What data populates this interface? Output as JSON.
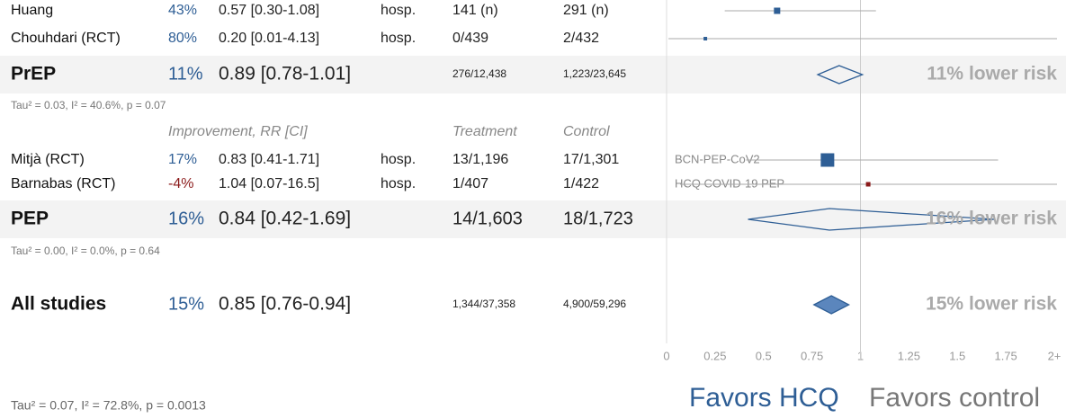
{
  "rows": [
    {
      "name": "Huang",
      "improvement": "43%",
      "rr_ci": "0.57 [0.30-1.08]",
      "outcome": "hosp.",
      "treatment": "141 (n)",
      "control": "291 (n)"
    },
    {
      "name": "Chouhdari (RCT)",
      "improvement": "80%",
      "rr_ci": "0.20 [0.01-4.13]",
      "outcome": "hosp.",
      "treatment": "0/439",
      "control": "2/432"
    },
    {
      "name": "PrEP",
      "improvement": "11%",
      "rr_ci": "0.89 [0.78-1.01]",
      "treatment": "276/12,438",
      "control": "1,223/23,645",
      "result": "11% lower risk"
    },
    {
      "name": "Tau² = 0.03, I² = 40.6%, p = 0.07"
    },
    {
      "improvement": "Improvement, RR [CI]",
      "treatment": "Treatment",
      "control": "Control"
    },
    {
      "name": "Mitjà (RCT)",
      "improvement": "17%",
      "rr_ci": "0.83 [0.41-1.71]",
      "outcome": "hosp.",
      "treatment": "13/1,196",
      "control": "17/1,301",
      "label": "BCN-PEP-CoV2"
    },
    {
      "name": "Barnabas (RCT)",
      "improvement": "-4%",
      "rr_ci": "1.04 [0.07-16.5]",
      "outcome": "hosp.",
      "treatment": "1/407",
      "control": "1/422",
      "label": "HCQ COVID-19 PEP"
    },
    {
      "name": "PEP",
      "improvement": "16%",
      "rr_ci": "0.84 [0.42-1.69]",
      "treatment": "14/1,603",
      "control": "18/1,723",
      "result": "16% lower risk"
    },
    {
      "name": "Tau² = 0.00, I² = 0.0%, p = 0.64"
    },
    {
      "name": "All studies",
      "improvement": "15%",
      "rr_ci": "0.85 [0.76-0.94]",
      "treatment": "1,344/37,358",
      "control": "4,900/59,296",
      "result": "15% lower risk"
    }
  ],
  "footer": {
    "tau": "Tau² = 0.07, I² = 72.8%, p = 0.0013",
    "favors_left": "Favors HCQ",
    "favors_right": "Favors control"
  },
  "axis": {
    "xlim": [
      0,
      2
    ],
    "ticks": [
      0,
      0.25,
      0.5,
      0.75,
      1,
      1.25,
      1.5,
      1.75,
      {
        "value": 2,
        "label": "2+"
      }
    ]
  }
}
